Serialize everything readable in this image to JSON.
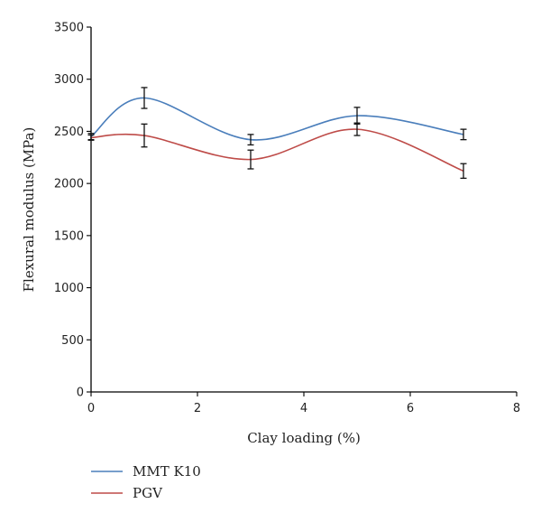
{
  "chart_data": {
    "type": "line",
    "title": "",
    "xlabel": "Clay loading (%)",
    "ylabel": "Flexural modulus (MPa)",
    "xlim": [
      0,
      8
    ],
    "ylim": [
      0,
      3500
    ],
    "xticks": [
      0,
      2,
      4,
      6,
      8
    ],
    "yticks": [
      0,
      500,
      1000,
      1500,
      2000,
      2500,
      3000,
      3500
    ],
    "grid": false,
    "legend_position": "bottom-left",
    "smooth": true,
    "series": [
      {
        "name": "MMT K10",
        "color": "#4a7ebb",
        "x": [
          0,
          1,
          3,
          5,
          7
        ],
        "y": [
          2450,
          2820,
          2420,
          2650,
          2470
        ],
        "error": [
          30,
          100,
          50,
          80,
          50
        ]
      },
      {
        "name": "PGV",
        "color": "#be4b48",
        "x": [
          0,
          1,
          3,
          5,
          7
        ],
        "y": [
          2440,
          2460,
          2230,
          2520,
          2120
        ],
        "error": [
          25,
          110,
          90,
          60,
          70
        ]
      }
    ]
  }
}
